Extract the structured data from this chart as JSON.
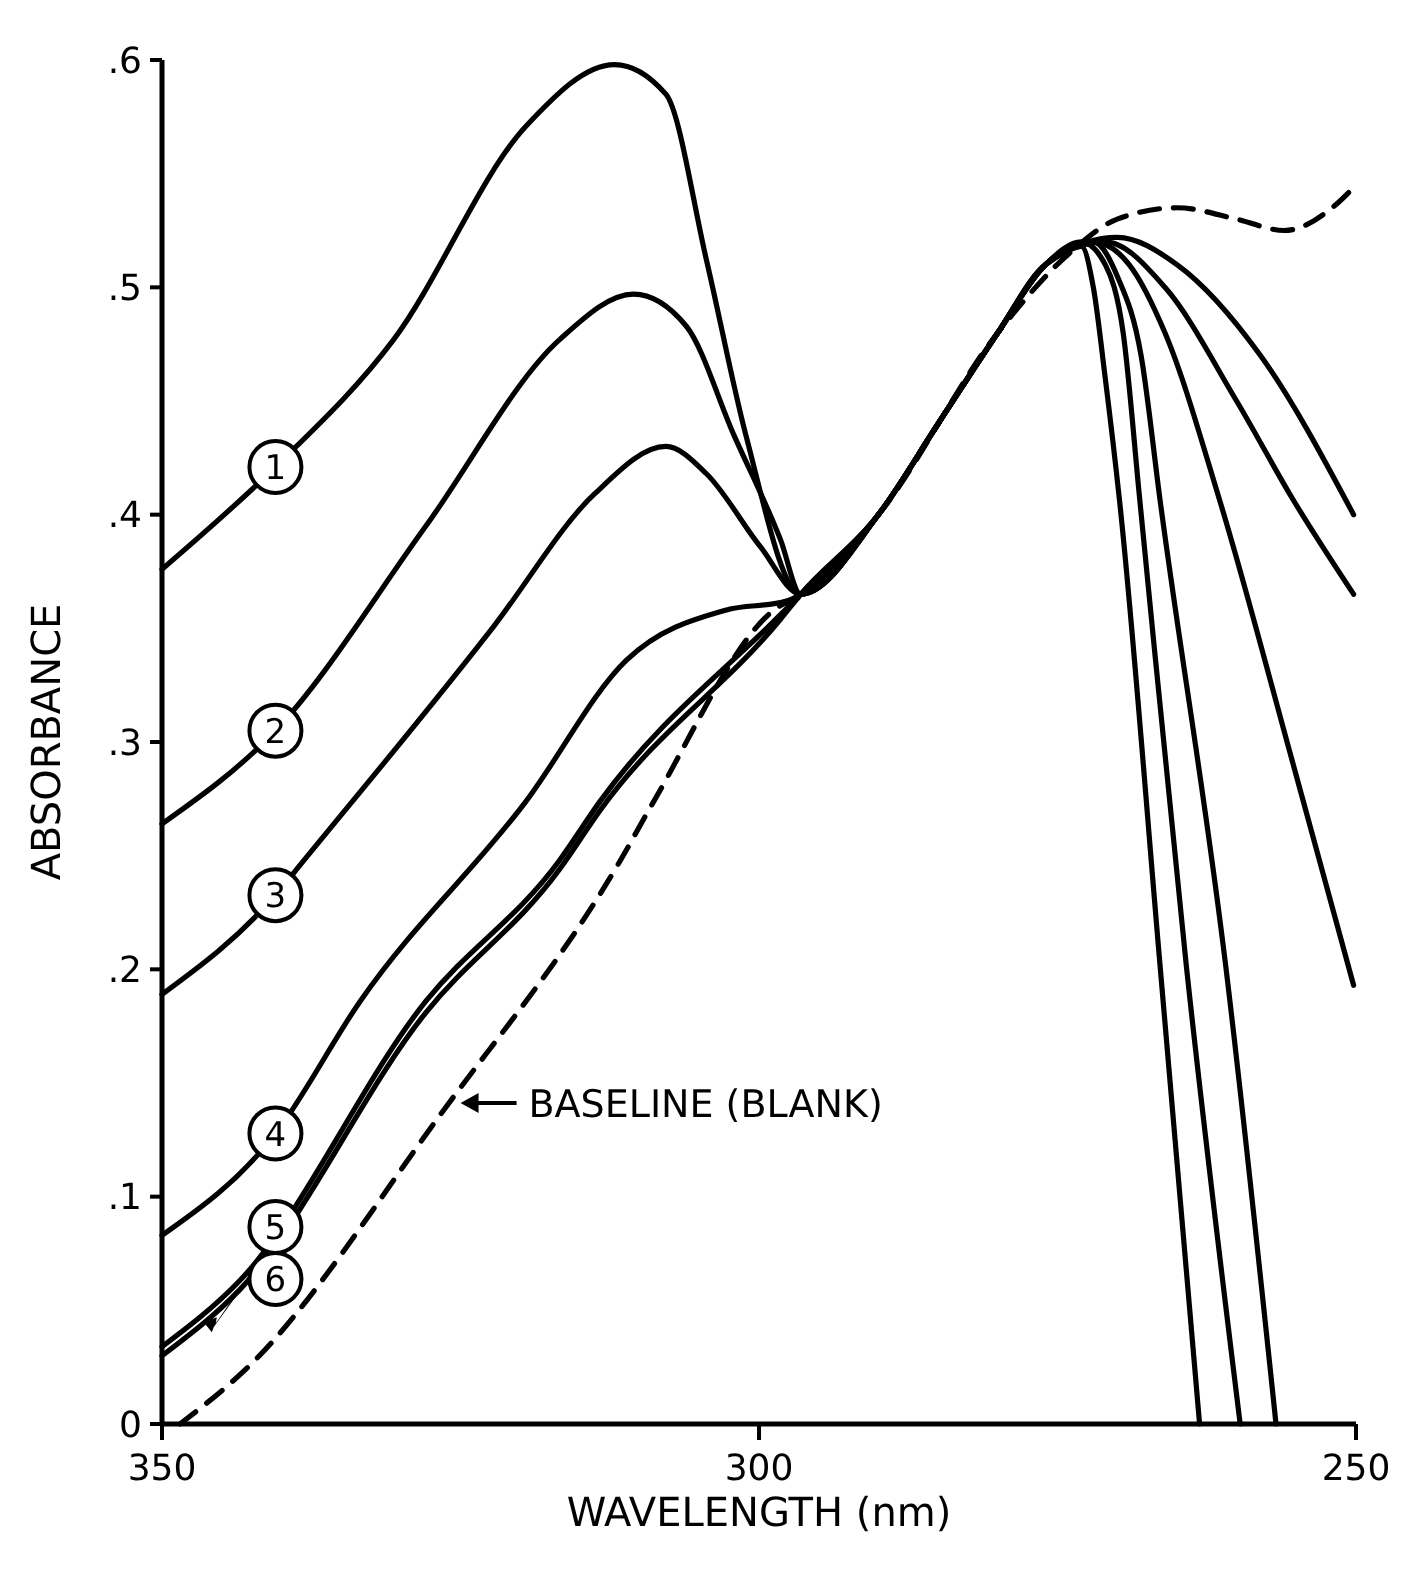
{
  "chart_data": {
    "type": "line",
    "xlabel": "WAVELENGTH (nm)",
    "ylabel": "ABSORBANCE",
    "xlim": [
      350,
      250
    ],
    "xticks": [
      350,
      300,
      250
    ],
    "ylim": [
      0,
      0.6
    ],
    "yticks": [
      {
        "value": 0,
        "label": "0"
      },
      {
        "value": 0.1,
        "label": ".1"
      },
      {
        "value": 0.2,
        "label": ".2"
      },
      {
        "value": 0.3,
        "label": ".3"
      },
      {
        "value": 0.4,
        "label": ".4"
      },
      {
        "value": 0.5,
        "label": ".5"
      },
      {
        "value": 0.6,
        "label": ".6"
      }
    ],
    "grid": false,
    "legend": "left",
    "marker": "none",
    "series": [
      {
        "name": "1",
        "color": "#000000",
        "x": [
          350,
          340.5,
          330.6,
          319.5,
          312.1,
          307.8,
          304.4,
          301.1,
          296.5,
          290,
          285,
          280,
          276,
          273,
          272,
          271,
          269.8,
          266.4,
          263.1
        ],
        "values": [
          0.376,
          0.421,
          0.477,
          0.571,
          0.598,
          0.585,
          0.512,
          0.435,
          0.365,
          0.4,
          0.44,
          0.48,
          0.51,
          0.518,
          0.5,
          0.46,
          0.406,
          0.201,
          0
        ]
      },
      {
        "name": "2",
        "color": "#000000",
        "x": [
          350,
          340.5,
          327.9,
          316.7,
          310.5,
          306.1,
          302.1,
          298.2,
          296.5,
          290,
          285,
          280,
          276,
          273,
          271,
          269.5,
          268.1,
          264.2,
          259.7
        ],
        "values": [
          0.264,
          0.305,
          0.395,
          0.477,
          0.497,
          0.483,
          0.435,
          0.389,
          0.365,
          0.4,
          0.44,
          0.48,
          0.51,
          0.52,
          0.51,
          0.48,
          0.406,
          0.201,
          0
        ]
      },
      {
        "name": "3",
        "color": "#000000",
        "x": [
          350,
          340.6,
          338.1,
          322.2,
          313.8,
          307.8,
          304.4,
          299.9,
          296.5,
          290,
          285,
          280,
          276,
          272,
          270,
          268,
          266.4,
          260.9,
          256.7
        ],
        "values": [
          0.189,
          0.232,
          0.248,
          0.351,
          0.409,
          0.43,
          0.418,
          0.386,
          0.365,
          0.4,
          0.44,
          0.48,
          0.51,
          0.52,
          0.505,
          0.47,
          0.406,
          0.201,
          0
        ]
      },
      {
        "name": "4",
        "color": "#000000",
        "x": [
          350,
          340.6,
          333.4,
          319.5,
          311.1,
          302.8,
          297.7,
          296.5,
          290,
          285,
          280,
          276,
          272,
          269,
          266,
          261.4,
          255.2,
          250.2
        ],
        "values": [
          0.083,
          0.127,
          0.186,
          0.274,
          0.336,
          0.358,
          0.362,
          0.365,
          0.4,
          0.44,
          0.48,
          0.51,
          0.52,
          0.51,
          0.48,
          0.406,
          0.289,
          0.193
        ]
      },
      {
        "name": "5",
        "color": "#000000",
        "x": [
          350,
          343.5,
          327.9,
          316.7,
          313.3,
          298.2,
          296.5,
          290,
          285,
          280,
          276,
          271,
          266,
          260,
          255.2,
          250.2
        ],
        "values": [
          0.034,
          0.063,
          0.186,
          0.248,
          0.274,
          0.356,
          0.365,
          0.4,
          0.44,
          0.48,
          0.51,
          0.52,
          0.5,
          0.45,
          0.406,
          0.365
        ]
      },
      {
        "name": "6",
        "color": "#000000",
        "x": [
          350,
          343.5,
          327.9,
          316.7,
          313.3,
          298.2,
          296.5,
          290,
          285,
          280,
          276,
          270,
          265,
          258,
          250.2
        ],
        "values": [
          0.03,
          0.059,
          0.181,
          0.244,
          0.27,
          0.354,
          0.365,
          0.4,
          0.44,
          0.48,
          0.51,
          0.522,
          0.51,
          0.47,
          0.4
        ]
      },
      {
        "name": "BASELINE (BLANK)",
        "color": "#000000",
        "line_style": "dashed",
        "x": [
          348.5,
          343,
          326.7,
          311.6,
          308.8,
          298.2,
          296.5,
          290,
          280,
          274,
          270,
          265,
          260,
          256,
          252,
          250
        ],
        "values": [
          0,
          0.024,
          0.136,
          0.248,
          0.274,
          0.36,
          0.364,
          0.4,
          0.48,
          0.515,
          0.53,
          0.535,
          0.53,
          0.525,
          0.535,
          0.545
        ]
      }
    ]
  }
}
